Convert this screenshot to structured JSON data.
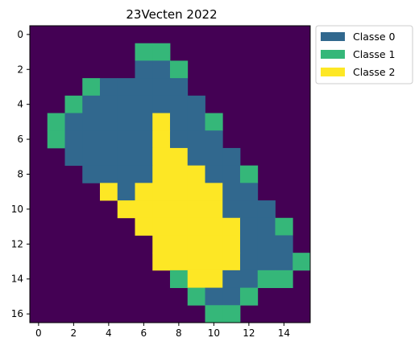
{
  "chart_data": {
    "type": "heatmap",
    "title": "23Vecten 2022",
    "xlabel": "",
    "ylabel": "",
    "x_ticks": [
      0,
      2,
      4,
      6,
      8,
      10,
      12,
      14
    ],
    "y_ticks": [
      0,
      2,
      4,
      6,
      8,
      10,
      12,
      14,
      16
    ],
    "xlim": [
      -0.5,
      15.5
    ],
    "ylim": [
      16.5,
      -0.5
    ],
    "legend_position": "outside-right-top",
    "background_color": "#440154",
    "legend": [
      {
        "label": "Classe 0",
        "value": 0,
        "color": "#31688e"
      },
      {
        "label": "Classe 1",
        "value": 1,
        "color": "#35b779"
      },
      {
        "label": "Classe 2",
        "value": 2,
        "color": "#fde725"
      }
    ],
    "cells": [
      [
        1,
        6,
        1
      ],
      [
        1,
        7,
        1
      ],
      [
        2,
        6,
        0
      ],
      [
        2,
        7,
        0
      ],
      [
        2,
        8,
        1
      ],
      [
        3,
        3,
        1
      ],
      [
        3,
        4,
        0
      ],
      [
        3,
        5,
        0
      ],
      [
        3,
        6,
        0
      ],
      [
        3,
        7,
        0
      ],
      [
        3,
        8,
        0
      ],
      [
        4,
        2,
        1
      ],
      [
        4,
        3,
        0
      ],
      [
        4,
        4,
        0
      ],
      [
        4,
        5,
        0
      ],
      [
        4,
        6,
        0
      ],
      [
        4,
        7,
        0
      ],
      [
        4,
        8,
        0
      ],
      [
        4,
        9,
        0
      ],
      [
        5,
        1,
        1
      ],
      [
        5,
        2,
        0
      ],
      [
        5,
        3,
        0
      ],
      [
        5,
        4,
        0
      ],
      [
        5,
        5,
        0
      ],
      [
        5,
        6,
        0
      ],
      [
        5,
        7,
        2
      ],
      [
        5,
        8,
        0
      ],
      [
        5,
        9,
        0
      ],
      [
        5,
        10,
        1
      ],
      [
        6,
        1,
        1
      ],
      [
        6,
        2,
        0
      ],
      [
        6,
        3,
        0
      ],
      [
        6,
        4,
        0
      ],
      [
        6,
        5,
        0
      ],
      [
        6,
        6,
        0
      ],
      [
        6,
        7,
        2
      ],
      [
        6,
        8,
        0
      ],
      [
        6,
        9,
        0
      ],
      [
        6,
        10,
        0
      ],
      [
        7,
        2,
        0
      ],
      [
        7,
        3,
        0
      ],
      [
        7,
        4,
        0
      ],
      [
        7,
        5,
        0
      ],
      [
        7,
        6,
        0
      ],
      [
        7,
        7,
        2
      ],
      [
        7,
        8,
        2
      ],
      [
        7,
        9,
        0
      ],
      [
        7,
        10,
        0
      ],
      [
        7,
        11,
        0
      ],
      [
        8,
        3,
        0
      ],
      [
        8,
        4,
        0
      ],
      [
        8,
        5,
        0
      ],
      [
        8,
        6,
        0
      ],
      [
        8,
        7,
        2
      ],
      [
        8,
        8,
        2
      ],
      [
        8,
        9,
        2
      ],
      [
        8,
        10,
        0
      ],
      [
        8,
        11,
        0
      ],
      [
        8,
        12,
        1
      ],
      [
        9,
        4,
        2
      ],
      [
        9,
        5,
        0
      ],
      [
        9,
        6,
        2
      ],
      [
        9,
        7,
        2
      ],
      [
        9,
        8,
        2
      ],
      [
        9,
        9,
        2
      ],
      [
        9,
        10,
        2
      ],
      [
        9,
        11,
        0
      ],
      [
        9,
        12,
        0
      ],
      [
        10,
        5,
        2
      ],
      [
        10,
        6,
        2
      ],
      [
        10,
        7,
        2
      ],
      [
        10,
        8,
        2
      ],
      [
        10,
        9,
        2
      ],
      [
        10,
        10,
        2
      ],
      [
        10,
        11,
        0
      ],
      [
        10,
        12,
        0
      ],
      [
        10,
        13,
        0
      ],
      [
        11,
        6,
        2
      ],
      [
        11,
        7,
        2
      ],
      [
        11,
        8,
        2
      ],
      [
        11,
        9,
        2
      ],
      [
        11,
        10,
        2
      ],
      [
        11,
        11,
        2
      ],
      [
        11,
        12,
        0
      ],
      [
        11,
        13,
        0
      ],
      [
        11,
        14,
        1
      ],
      [
        12,
        7,
        2
      ],
      [
        12,
        8,
        2
      ],
      [
        12,
        9,
        2
      ],
      [
        12,
        10,
        2
      ],
      [
        12,
        11,
        2
      ],
      [
        12,
        12,
        0
      ],
      [
        12,
        13,
        0
      ],
      [
        12,
        14,
        0
      ],
      [
        13,
        7,
        2
      ],
      [
        13,
        8,
        2
      ],
      [
        13,
        9,
        2
      ],
      [
        13,
        10,
        2
      ],
      [
        13,
        11,
        2
      ],
      [
        13,
        12,
        0
      ],
      [
        13,
        13,
        0
      ],
      [
        13,
        14,
        0
      ],
      [
        13,
        15,
        1
      ],
      [
        14,
        8,
        1
      ],
      [
        14,
        9,
        2
      ],
      [
        14,
        10,
        2
      ],
      [
        14,
        11,
        0
      ],
      [
        14,
        12,
        0
      ],
      [
        14,
        13,
        1
      ],
      [
        14,
        14,
        1
      ],
      [
        15,
        9,
        1
      ],
      [
        15,
        10,
        0
      ],
      [
        15,
        11,
        0
      ],
      [
        15,
        12,
        1
      ],
      [
        16,
        10,
        1
      ],
      [
        16,
        11,
        1
      ]
    ]
  }
}
